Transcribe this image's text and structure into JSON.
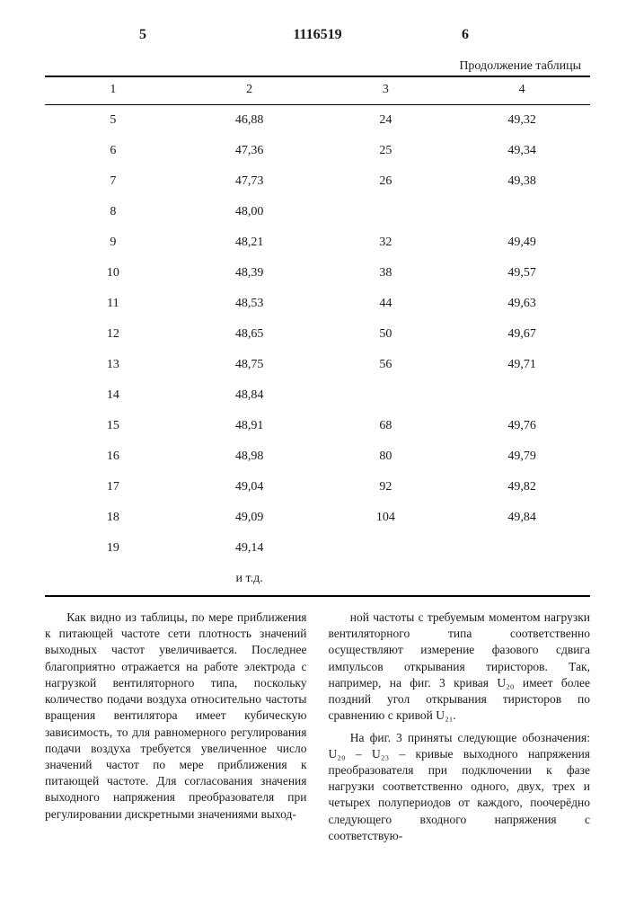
{
  "header": {
    "left_mark": "5",
    "doc_number": "1116519",
    "right_mark": "6",
    "continuation": "Продолжение таблицы"
  },
  "table": {
    "columns": [
      "1",
      "2",
      "3",
      "4"
    ],
    "rows": [
      [
        "5",
        "46,88",
        "24",
        "49,32"
      ],
      [
        "6",
        "47,36",
        "25",
        "49,34"
      ],
      [
        "7",
        "47,73",
        "26",
        "49,38"
      ],
      [
        "8",
        "48,00",
        "",
        ""
      ],
      [
        "9",
        "48,21",
        "32",
        "49,49"
      ],
      [
        "10",
        "48,39",
        "38",
        "49,57"
      ],
      [
        "11",
        "48,53",
        "44",
        "49,63"
      ],
      [
        "12",
        "48,65",
        "50",
        "49,67"
      ],
      [
        "13",
        "48,75",
        "56",
        "49,71"
      ],
      [
        "14",
        "48,84",
        "",
        ""
      ],
      [
        "15",
        "48,91",
        "68",
        "49,76"
      ],
      [
        "16",
        "48,98",
        "80",
        "49,79"
      ],
      [
        "17",
        "49,04",
        "92",
        "49,82"
      ],
      [
        "18",
        "49,09",
        "104",
        "49,84"
      ],
      [
        "19",
        "49,14",
        "",
        ""
      ],
      [
        "",
        "и т.д.",
        "",
        ""
      ]
    ]
  },
  "body": {
    "p1": "Как видно из таблицы, по мере приближения к питающей частоте сети плотность значений выходных частот увеличивается. Последнее благоприятно отражается на работе электрода с нагрузкой вентиляторного типа, поскольку количество подачи воздуха относительно частоты вращения вентилятора имеет кубическую зависимость, то для равномерного регулирования подачи воздуха требуется увеличенное число значений частот по мере приближения к питающей частоте. Для согласования значения выходного напряжения преобразователя при регулировании дискретными значениями выход-",
    "p2": "ной частоты с требуемым моментом нагрузки вентиляторного типа соответственно осуществляют измерение фазового сдвига импульсов открывания тиристоров. Так, например, на фиг. 3 кривая U₂₀ имеет более поздний угол открывания тиристоров по сравнению с кривой U₂₁.",
    "p3": "На фиг. 3 приняты следующие обозначения: U₂₀ – U₂₃ – кривые выходного напряжения преобразователя при подключении к фазе нагрузки соответственно одного, двух, трех и четырех полупериодов от каждого, поочерёдно следующего входного напряжения с соответствую-"
  }
}
